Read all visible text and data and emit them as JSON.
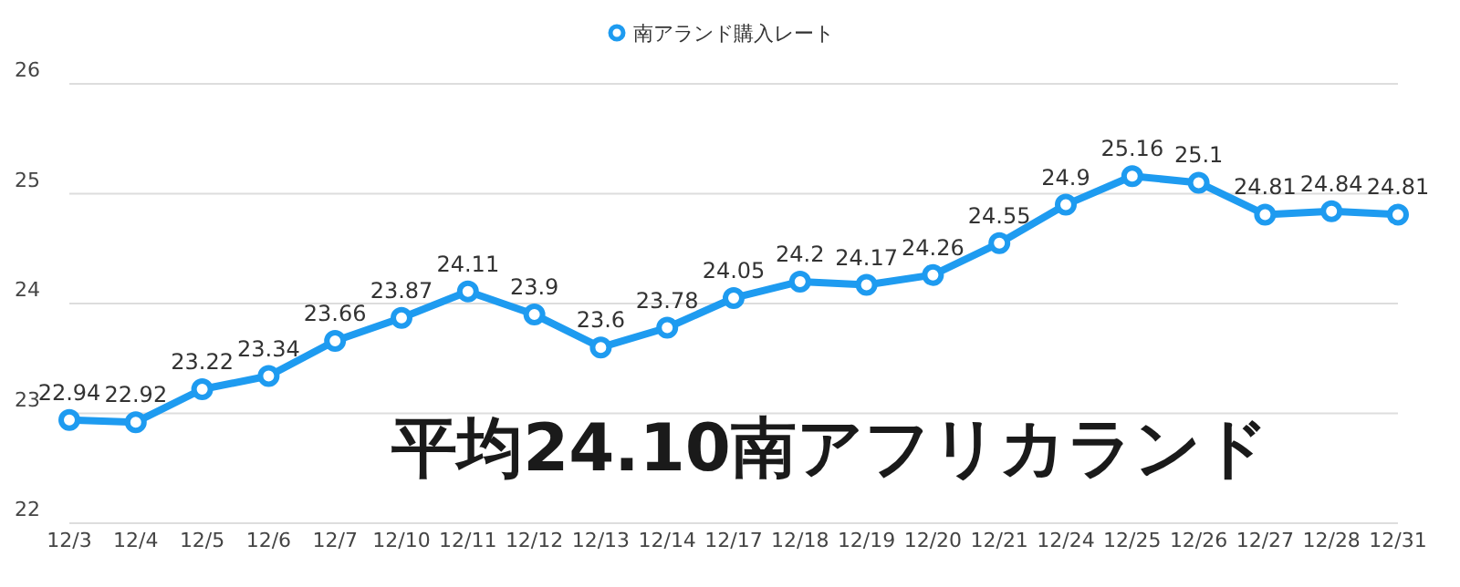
{
  "chart_data": {
    "type": "line",
    "categories": [
      "12/3",
      "12/4",
      "12/5",
      "12/6",
      "12/7",
      "12/10",
      "12/11",
      "12/12",
      "12/13",
      "12/14",
      "12/17",
      "12/18",
      "12/19",
      "12/20",
      "12/21",
      "12/24",
      "12/25",
      "12/26",
      "12/27",
      "12/28",
      "12/31"
    ],
    "series": [
      {
        "name": "南アランド購入レート",
        "color": "#1e9bf0",
        "values": [
          22.94,
          22.92,
          23.22,
          23.34,
          23.66,
          23.87,
          24.11,
          23.9,
          23.6,
          23.78,
          24.05,
          24.2,
          24.17,
          24.26,
          24.55,
          24.9,
          25.16,
          25.1,
          24.81,
          24.84,
          24.81
        ]
      }
    ],
    "ylim": [
      22,
      26
    ],
    "yticks": [
      22,
      23,
      24,
      25,
      26
    ],
    "grid": "y",
    "legend": "top",
    "marker": "circle",
    "data_labels": true,
    "annotations": [
      "平均24.10南アフリカランド"
    ]
  }
}
